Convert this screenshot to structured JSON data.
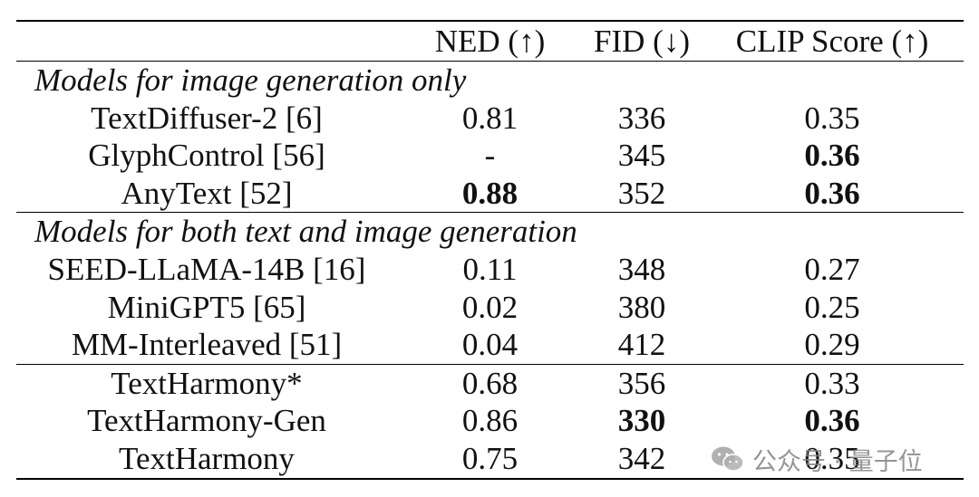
{
  "table": {
    "headers": [
      "",
      "NED (↑)",
      "FID (↓)",
      "CLIP Score (↑)"
    ],
    "groups": [
      {
        "title": "Models for image generation only",
        "rows": [
          {
            "model": "TextDiffuser-2 [6]",
            "ned": "0.81",
            "fid": "336",
            "clip": "0.35",
            "bold": []
          },
          {
            "model": "GlyphControl [56]",
            "ned": "-",
            "fid": "345",
            "clip": "0.36",
            "bold": [
              "clip"
            ]
          },
          {
            "model": "AnyText [52]",
            "ned": "0.88",
            "fid": "352",
            "clip": "0.36",
            "bold": [
              "ned",
              "clip"
            ]
          }
        ]
      },
      {
        "title": "Models for both text and image generation",
        "rows": [
          {
            "model": "SEED-LLaMA-14B [16]",
            "ned": "0.11",
            "fid": "348",
            "clip": "0.27",
            "bold": []
          },
          {
            "model": "MiniGPT5 [65]",
            "ned": "0.02",
            "fid": "380",
            "clip": "0.25",
            "bold": []
          },
          {
            "model": "MM-Interleaved [51]",
            "ned": "0.04",
            "fid": "412",
            "clip": "0.29",
            "bold": []
          }
        ]
      },
      {
        "title": "",
        "rows": [
          {
            "model": "TextHarmony*",
            "ned": "0.68",
            "fid": "356",
            "clip": "0.33",
            "bold": []
          },
          {
            "model": "TextHarmony-Gen",
            "ned": "0.86",
            "fid": "330",
            "clip": "0.36",
            "bold": [
              "fid",
              "clip"
            ]
          },
          {
            "model": "TextHarmony",
            "ned": "0.75",
            "fid": "342",
            "clip": "0.35",
            "bold": []
          }
        ]
      }
    ]
  },
  "watermark": {
    "text": "公众号 · 量子位",
    "icon": "wechat-icon"
  }
}
